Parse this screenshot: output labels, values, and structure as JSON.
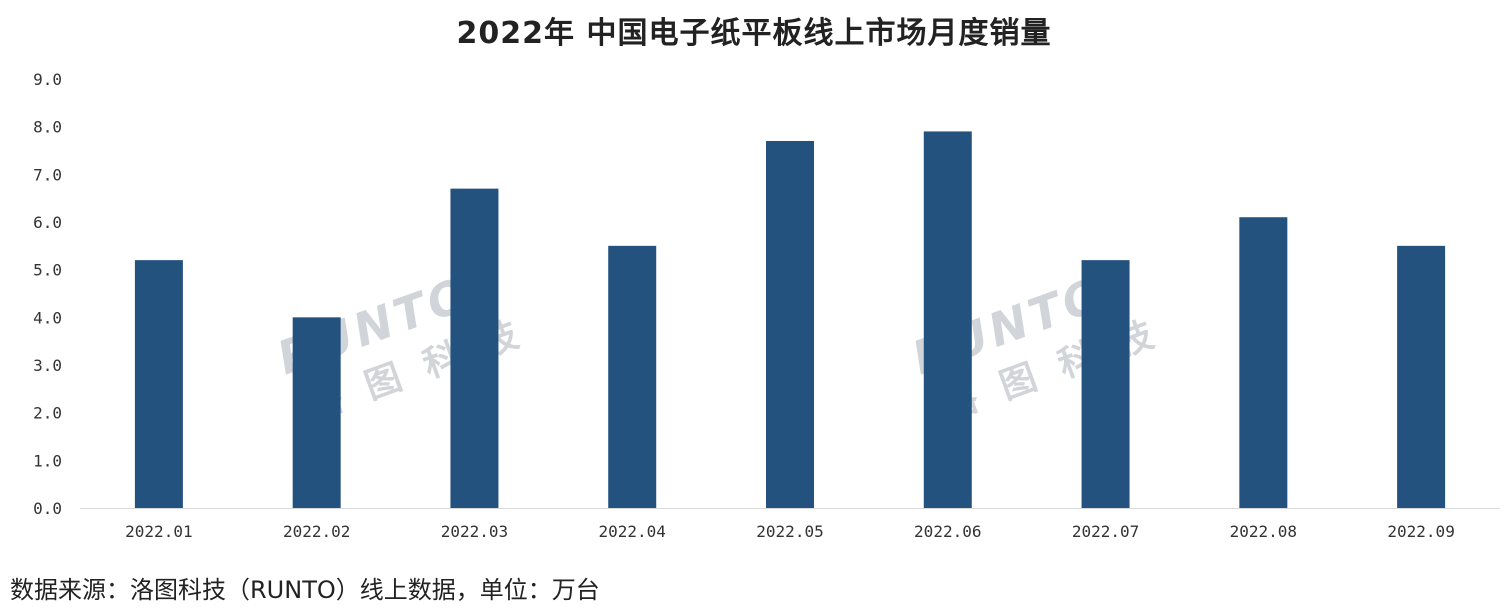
{
  "chart_data": {
    "type": "bar",
    "title": "2022年 中国电子纸平板线上市场月度销量",
    "categories": [
      "2022.01",
      "2022.02",
      "2022.03",
      "2022.04",
      "2022.05",
      "2022.06",
      "2022.07",
      "2022.08",
      "2022.09"
    ],
    "values": [
      5.2,
      4.0,
      6.7,
      5.5,
      7.7,
      7.9,
      5.2,
      6.1,
      5.5
    ],
    "y_ticks": [
      "0.0",
      "1.0",
      "2.0",
      "3.0",
      "4.0",
      "5.0",
      "6.0",
      "7.0",
      "8.0",
      "9.0"
    ],
    "ylim": [
      0,
      9
    ],
    "xlabel": "",
    "ylabel": "",
    "grid": false,
    "bar_color": "#24527f"
  },
  "watermark": {
    "brand": "RUNTO",
    "name": "洛图科技"
  },
  "source_note": "数据来源：洛图科技（RUNTO）线上数据，单位：万台"
}
